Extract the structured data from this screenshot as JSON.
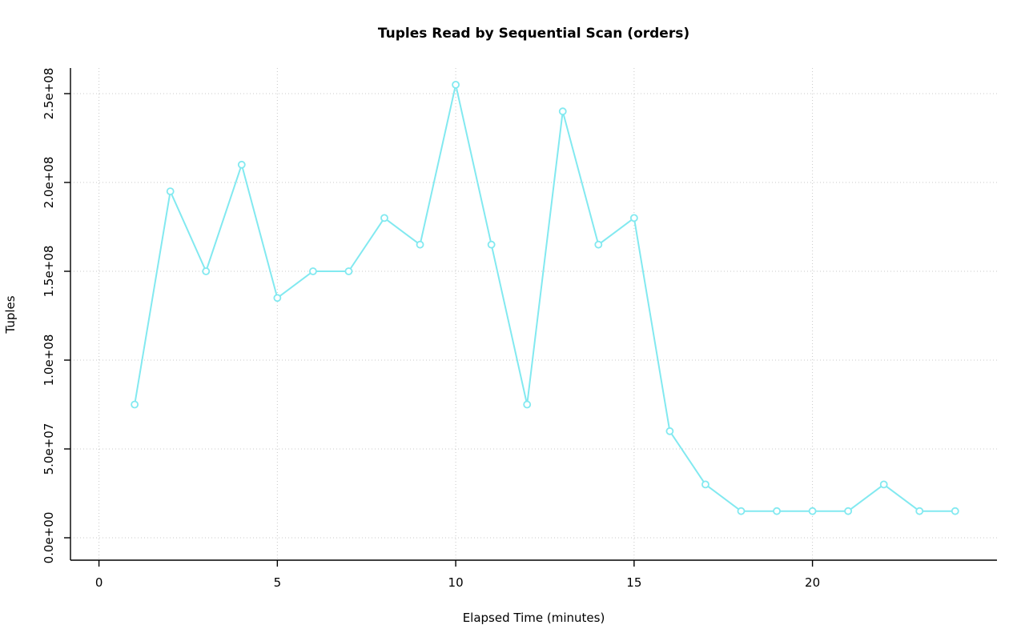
{
  "chart_data": {
    "type": "line",
    "title": "Tuples Read by Sequential Scan (orders)",
    "xlabel": "Elapsed Time (minutes)",
    "ylabel": "Tuples",
    "x": [
      1,
      2,
      3,
      4,
      5,
      6,
      7,
      8,
      9,
      10,
      11,
      12,
      13,
      14,
      15,
      16,
      17,
      18,
      19,
      20,
      21,
      22,
      23,
      24
    ],
    "values": [
      75000000,
      195000000,
      150000000,
      210000000,
      135000000,
      150000000,
      150000000,
      180000000,
      165000000,
      255000000,
      165000000,
      75000000,
      240000000,
      165000000,
      180000000,
      60000000,
      30000000,
      15000000,
      15000000,
      15000000,
      15000000,
      30000000,
      15000000,
      15000000
    ],
    "x_ticks": {
      "values": [
        0,
        5,
        10,
        15,
        20
      ],
      "labels": [
        "0",
        "5",
        "10",
        "15",
        "20"
      ]
    },
    "y_ticks": {
      "values": [
        0,
        50000000,
        100000000,
        150000000,
        200000000,
        250000000
      ],
      "labels": [
        "0.0e+00",
        "5.0e+07",
        "1.0e+08",
        "1.5e+08",
        "2.0e+08",
        "2.5e+08"
      ]
    },
    "xlim": [
      0,
      24
    ],
    "ylim": [
      0,
      260000000
    ],
    "grid": true,
    "legend_position": "none",
    "marker": "open-circle",
    "line_color": "#82E9F0",
    "grid_color": "#C8C8C8",
    "axis_color": "#000000",
    "background_color": "#FFFFFF"
  }
}
